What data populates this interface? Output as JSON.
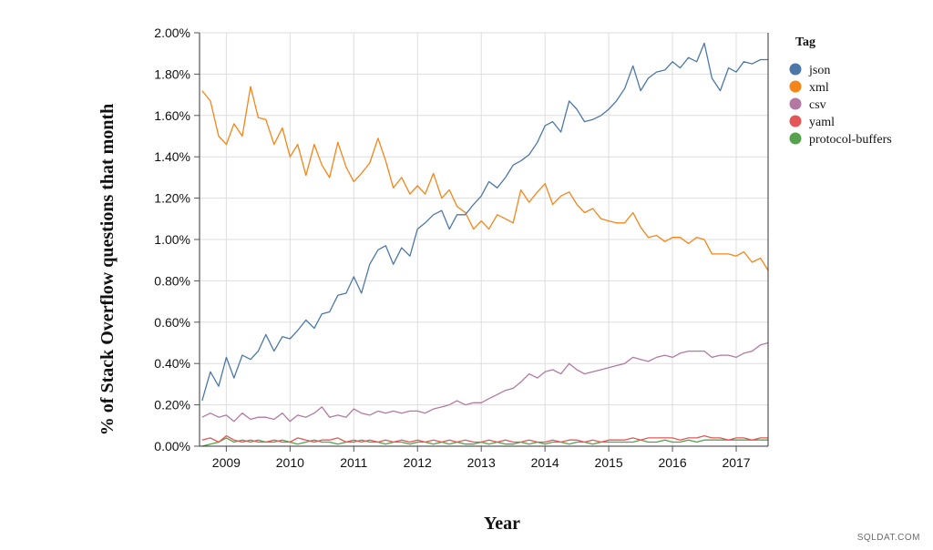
{
  "watermark": "SQLDAT.COM",
  "chart_data": {
    "type": "line",
    "title": "",
    "xlabel": "Year",
    "ylabel": "% of Stack Overflow questions that month",
    "xlim": [
      2008.58,
      2017.5
    ],
    "ylim": [
      0,
      0.02
    ],
    "x_ticks": [
      "2009",
      "2010",
      "2011",
      "2012",
      "2013",
      "2014",
      "2015",
      "2016",
      "2017"
    ],
    "y_ticks": [
      "0.00%",
      "0.20%",
      "0.40%",
      "0.60%",
      "0.80%",
      "1.00%",
      "1.20%",
      "1.40%",
      "1.60%",
      "1.80%",
      "2.00%"
    ],
    "grid": true,
    "legend": {
      "title": "Tag",
      "position": "right",
      "entries": [
        "json",
        "xml",
        "csv",
        "yaml",
        "protocol-buffers"
      ]
    },
    "series": [
      {
        "name": "json",
        "color": "#4c78a8",
        "x": [
          2008.62,
          2008.75,
          2008.88,
          2009.0,
          2009.12,
          2009.25,
          2009.38,
          2009.5,
          2009.62,
          2009.75,
          2009.88,
          2010.0,
          2010.12,
          2010.25,
          2010.38,
          2010.5,
          2010.62,
          2010.75,
          2010.88,
          2011.0,
          2011.12,
          2011.25,
          2011.38,
          2011.5,
          2011.62,
          2011.75,
          2011.88,
          2012.0,
          2012.12,
          2012.25,
          2012.38,
          2012.5,
          2012.62,
          2012.75,
          2012.88,
          2013.0,
          2013.12,
          2013.25,
          2013.38,
          2013.5,
          2013.62,
          2013.75,
          2013.88,
          2014.0,
          2014.12,
          2014.25,
          2014.38,
          2014.5,
          2014.62,
          2014.75,
          2014.88,
          2015.0,
          2015.12,
          2015.25,
          2015.38,
          2015.5,
          2015.62,
          2015.75,
          2015.88,
          2016.0,
          2016.12,
          2016.25,
          2016.38,
          2016.5,
          2016.62,
          2016.75,
          2016.88,
          2017.0,
          2017.12,
          2017.25,
          2017.38,
          2017.5
        ],
        "values": [
          0.0022,
          0.0036,
          0.0029,
          0.0043,
          0.0033,
          0.0044,
          0.0042,
          0.0046,
          0.0054,
          0.0046,
          0.0053,
          0.0052,
          0.0056,
          0.0061,
          0.0057,
          0.0064,
          0.0065,
          0.0073,
          0.0074,
          0.0082,
          0.0074,
          0.0088,
          0.0095,
          0.0097,
          0.0088,
          0.0096,
          0.0092,
          0.0105,
          0.0108,
          0.0112,
          0.0114,
          0.0105,
          0.0112,
          0.0112,
          0.0117,
          0.0121,
          0.0128,
          0.0125,
          0.013,
          0.0136,
          0.0138,
          0.0141,
          0.0147,
          0.0155,
          0.0157,
          0.0152,
          0.0167,
          0.0163,
          0.0157,
          0.0158,
          0.016,
          0.0163,
          0.0167,
          0.0173,
          0.0184,
          0.0172,
          0.0178,
          0.0181,
          0.0182,
          0.0186,
          0.0183,
          0.0188,
          0.0186,
          0.0195,
          0.0178,
          0.0172,
          0.0183,
          0.0181,
          0.0186,
          0.0185,
          0.0187,
          0.0187
        ]
      },
      {
        "name": "xml",
        "color": "#f58518",
        "x": [
          2008.62,
          2008.75,
          2008.88,
          2009.0,
          2009.12,
          2009.25,
          2009.38,
          2009.5,
          2009.62,
          2009.75,
          2009.88,
          2010.0,
          2010.12,
          2010.25,
          2010.38,
          2010.5,
          2010.62,
          2010.75,
          2010.88,
          2011.0,
          2011.12,
          2011.25,
          2011.38,
          2011.5,
          2011.62,
          2011.75,
          2011.88,
          2012.0,
          2012.12,
          2012.25,
          2012.38,
          2012.5,
          2012.62,
          2012.75,
          2012.88,
          2013.0,
          2013.12,
          2013.25,
          2013.38,
          2013.5,
          2013.62,
          2013.75,
          2013.88,
          2014.0,
          2014.12,
          2014.25,
          2014.38,
          2014.5,
          2014.62,
          2014.75,
          2014.88,
          2015.0,
          2015.12,
          2015.25,
          2015.38,
          2015.5,
          2015.62,
          2015.75,
          2015.88,
          2016.0,
          2016.12,
          2016.25,
          2016.38,
          2016.5,
          2016.62,
          2016.75,
          2016.88,
          2017.0,
          2017.12,
          2017.25,
          2017.38,
          2017.5
        ],
        "values": [
          0.0172,
          0.0167,
          0.015,
          0.0146,
          0.0156,
          0.015,
          0.0174,
          0.0159,
          0.0158,
          0.0146,
          0.0154,
          0.014,
          0.0146,
          0.0131,
          0.0146,
          0.0136,
          0.013,
          0.0147,
          0.0135,
          0.0128,
          0.0132,
          0.0137,
          0.0149,
          0.0138,
          0.0125,
          0.013,
          0.0122,
          0.0126,
          0.0122,
          0.0132,
          0.012,
          0.0124,
          0.0116,
          0.0113,
          0.0105,
          0.0109,
          0.0105,
          0.0112,
          0.011,
          0.0108,
          0.0124,
          0.0118,
          0.0123,
          0.0127,
          0.0117,
          0.0121,
          0.0123,
          0.0117,
          0.0113,
          0.0115,
          0.011,
          0.0109,
          0.0108,
          0.0108,
          0.0113,
          0.0106,
          0.0101,
          0.0102,
          0.0099,
          0.0101,
          0.0101,
          0.0098,
          0.0101,
          0.01,
          0.0093,
          0.0093,
          0.0093,
          0.0092,
          0.0094,
          0.0089,
          0.0091,
          0.0085
        ]
      },
      {
        "name": "csv",
        "color": "#b279a2",
        "x": [
          2008.62,
          2008.75,
          2008.88,
          2009.0,
          2009.12,
          2009.25,
          2009.38,
          2009.5,
          2009.62,
          2009.75,
          2009.88,
          2010.0,
          2010.12,
          2010.25,
          2010.38,
          2010.5,
          2010.62,
          2010.75,
          2010.88,
          2011.0,
          2011.12,
          2011.25,
          2011.38,
          2011.5,
          2011.62,
          2011.75,
          2011.88,
          2012.0,
          2012.12,
          2012.25,
          2012.38,
          2012.5,
          2012.62,
          2012.75,
          2012.88,
          2013.0,
          2013.12,
          2013.25,
          2013.38,
          2013.5,
          2013.62,
          2013.75,
          2013.88,
          2014.0,
          2014.12,
          2014.25,
          2014.38,
          2014.5,
          2014.62,
          2014.75,
          2014.88,
          2015.0,
          2015.12,
          2015.25,
          2015.38,
          2015.5,
          2015.62,
          2015.75,
          2015.88,
          2016.0,
          2016.12,
          2016.25,
          2016.38,
          2016.5,
          2016.62,
          2016.75,
          2016.88,
          2017.0,
          2017.12,
          2017.25,
          2017.38,
          2017.5
        ],
        "values": [
          0.0014,
          0.0016,
          0.0014,
          0.0015,
          0.0012,
          0.0016,
          0.0013,
          0.0014,
          0.0014,
          0.0013,
          0.0016,
          0.0012,
          0.0015,
          0.0014,
          0.0016,
          0.0019,
          0.0014,
          0.0015,
          0.0014,
          0.0018,
          0.0016,
          0.0015,
          0.0017,
          0.0016,
          0.0017,
          0.0016,
          0.0017,
          0.0017,
          0.0016,
          0.0018,
          0.0019,
          0.002,
          0.0022,
          0.002,
          0.0021,
          0.0021,
          0.0023,
          0.0025,
          0.0027,
          0.0028,
          0.0031,
          0.0035,
          0.0033,
          0.0036,
          0.0037,
          0.0035,
          0.004,
          0.0037,
          0.0035,
          0.0036,
          0.0037,
          0.0038,
          0.0039,
          0.004,
          0.0043,
          0.0042,
          0.0041,
          0.0043,
          0.0044,
          0.0043,
          0.0045,
          0.0046,
          0.0046,
          0.0046,
          0.0043,
          0.0044,
          0.0044,
          0.0043,
          0.0045,
          0.0046,
          0.0049,
          0.005
        ]
      },
      {
        "name": "yaml",
        "color": "#e45756",
        "x": [
          2008.62,
          2008.75,
          2008.88,
          2009.0,
          2009.12,
          2009.25,
          2009.38,
          2009.5,
          2009.62,
          2009.75,
          2009.88,
          2010.0,
          2010.12,
          2010.25,
          2010.38,
          2010.5,
          2010.62,
          2010.75,
          2010.88,
          2011.0,
          2011.12,
          2011.25,
          2011.38,
          2011.5,
          2011.62,
          2011.75,
          2011.88,
          2012.0,
          2012.12,
          2012.25,
          2012.38,
          2012.5,
          2012.62,
          2012.75,
          2012.88,
          2013.0,
          2013.12,
          2013.25,
          2013.38,
          2013.5,
          2013.62,
          2013.75,
          2013.88,
          2014.0,
          2014.12,
          2014.25,
          2014.38,
          2014.5,
          2014.62,
          2014.75,
          2014.88,
          2015.0,
          2015.12,
          2015.25,
          2015.38,
          2015.5,
          2015.62,
          2015.75,
          2015.88,
          2016.0,
          2016.12,
          2016.25,
          2016.38,
          2016.5,
          2016.62,
          2016.75,
          2016.88,
          2017.0,
          2017.12,
          2017.25,
          2017.38,
          2017.5
        ],
        "values": [
          0.0003,
          0.0004,
          0.0002,
          0.0005,
          0.0003,
          0.0002,
          0.0003,
          0.0002,
          0.0002,
          0.0003,
          0.0002,
          0.0002,
          0.0004,
          0.0003,
          0.0002,
          0.0003,
          0.0003,
          0.0004,
          0.0002,
          0.0003,
          0.0002,
          0.0003,
          0.0002,
          0.0003,
          0.0002,
          0.0003,
          0.0002,
          0.0003,
          0.0002,
          0.0003,
          0.0002,
          0.0003,
          0.0002,
          0.0003,
          0.0002,
          0.0002,
          0.0003,
          0.0002,
          0.0003,
          0.0002,
          0.0002,
          0.0003,
          0.0002,
          0.0002,
          0.0003,
          0.0002,
          0.0003,
          0.0003,
          0.0002,
          0.0003,
          0.0002,
          0.0003,
          0.0003,
          0.0003,
          0.0004,
          0.0003,
          0.0004,
          0.0004,
          0.0004,
          0.0004,
          0.0003,
          0.0004,
          0.0004,
          0.0005,
          0.0004,
          0.0004,
          0.0003,
          0.0004,
          0.0004,
          0.0003,
          0.0004,
          0.0004
        ]
      },
      {
        "name": "protocol-buffers",
        "color": "#54a24b",
        "x": [
          2008.62,
          2008.75,
          2008.88,
          2009.0,
          2009.12,
          2009.25,
          2009.38,
          2009.5,
          2009.62,
          2009.75,
          2009.88,
          2010.0,
          2010.12,
          2010.25,
          2010.38,
          2010.5,
          2010.62,
          2010.75,
          2010.88,
          2011.0,
          2011.12,
          2011.25,
          2011.38,
          2011.5,
          2011.62,
          2011.75,
          2011.88,
          2012.0,
          2012.12,
          2012.25,
          2012.38,
          2012.5,
          2012.62,
          2012.75,
          2012.88,
          2013.0,
          2013.12,
          2013.25,
          2013.38,
          2013.5,
          2013.62,
          2013.75,
          2013.88,
          2014.0,
          2014.12,
          2014.25,
          2014.38,
          2014.5,
          2014.62,
          2014.75,
          2014.88,
          2015.0,
          2015.12,
          2015.25,
          2015.38,
          2015.5,
          2015.62,
          2015.75,
          2015.88,
          2016.0,
          2016.12,
          2016.25,
          2016.38,
          2016.5,
          2016.62,
          2016.75,
          2016.88,
          2017.0,
          2017.12,
          2017.25,
          2017.38,
          2017.5
        ],
        "values": [
          0.0,
          0.0001,
          0.0002,
          0.0004,
          0.0002,
          0.0003,
          0.0002,
          0.0003,
          0.0002,
          0.0002,
          0.0003,
          0.0002,
          0.0001,
          0.0002,
          0.0003,
          0.0002,
          0.0002,
          0.0001,
          0.0002,
          0.0002,
          0.0003,
          0.0002,
          0.0002,
          0.0001,
          0.0002,
          0.0002,
          0.0001,
          0.0002,
          0.0002,
          0.0001,
          0.0002,
          0.0001,
          0.0002,
          0.0001,
          0.0001,
          0.0002,
          0.0001,
          0.0002,
          0.0001,
          0.0001,
          0.0002,
          0.0001,
          0.0002,
          0.0001,
          0.0002,
          0.0002,
          0.0001,
          0.0002,
          0.0002,
          0.0001,
          0.0002,
          0.0002,
          0.0002,
          0.0002,
          0.0002,
          0.0003,
          0.0002,
          0.0002,
          0.0003,
          0.0002,
          0.0002,
          0.0003,
          0.0002,
          0.0003,
          0.0003,
          0.0003,
          0.0003,
          0.0003,
          0.0003,
          0.0003,
          0.0003,
          0.0003
        ]
      }
    ]
  }
}
